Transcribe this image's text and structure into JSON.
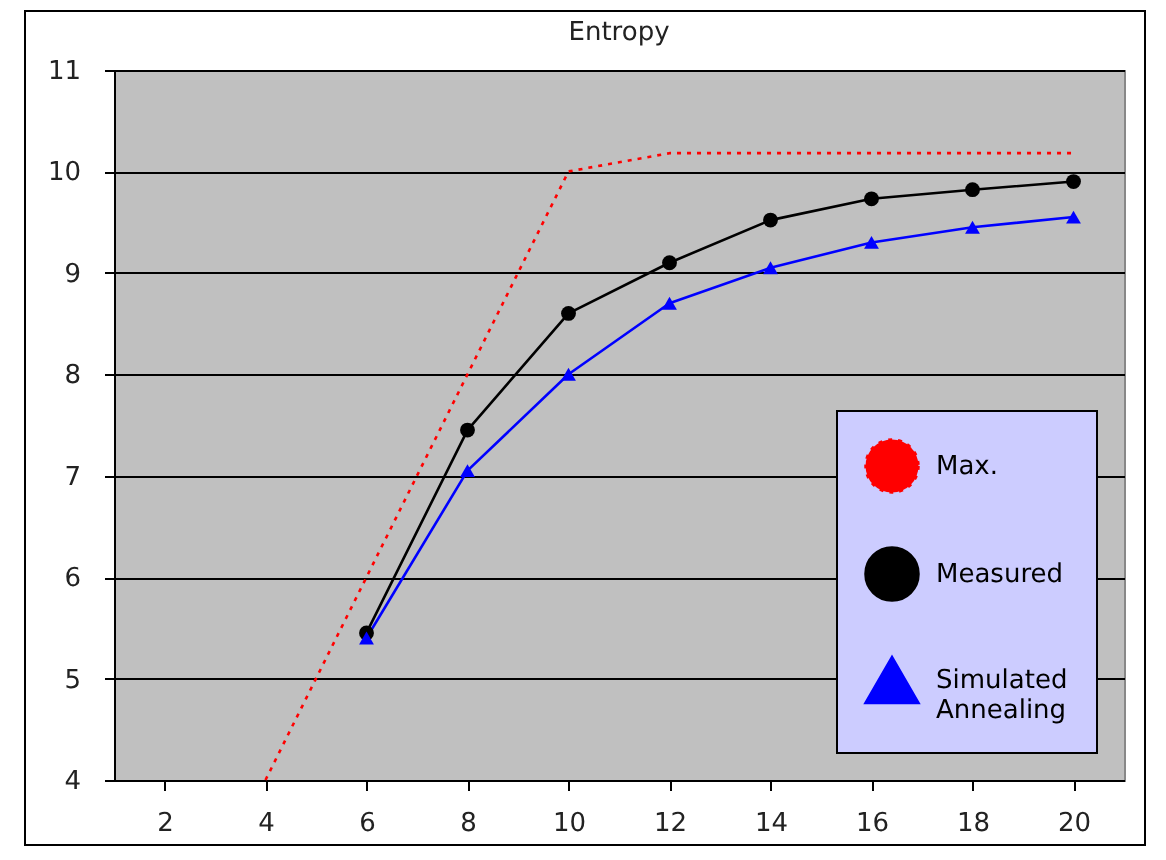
{
  "chart_data": {
    "type": "line",
    "title": "Entropy",
    "categories": [
      "2",
      "4",
      "6",
      "8",
      "10",
      "12",
      "14",
      "16",
      "18",
      "20"
    ],
    "series": [
      {
        "name": "Max.",
        "color": "#ff0000",
        "marker": "none",
        "line_style": "dotted",
        "values": [
          null,
          4,
          6,
          8,
          10,
          10.18,
          10.18,
          10.18,
          10.18,
          10.18
        ]
      },
      {
        "name": "Measured",
        "color": "#000000",
        "marker": "circle",
        "line_style": "solid",
        "values": [
          null,
          null,
          5.45,
          7.45,
          8.6,
          9.1,
          9.52,
          9.73,
          9.82,
          9.9
        ]
      },
      {
        "name": "Simulated Annealing",
        "color": "#0000ff",
        "marker": "triangle",
        "line_style": "solid",
        "values": [
          null,
          null,
          5.4,
          7.05,
          8.0,
          8.7,
          9.05,
          9.3,
          9.45,
          9.55
        ]
      }
    ],
    "ylim": [
      4,
      11
    ],
    "yticks": [
      4,
      5,
      6,
      7,
      8,
      9,
      10,
      11
    ],
    "grid": "y",
    "legend": "bottom right"
  }
}
